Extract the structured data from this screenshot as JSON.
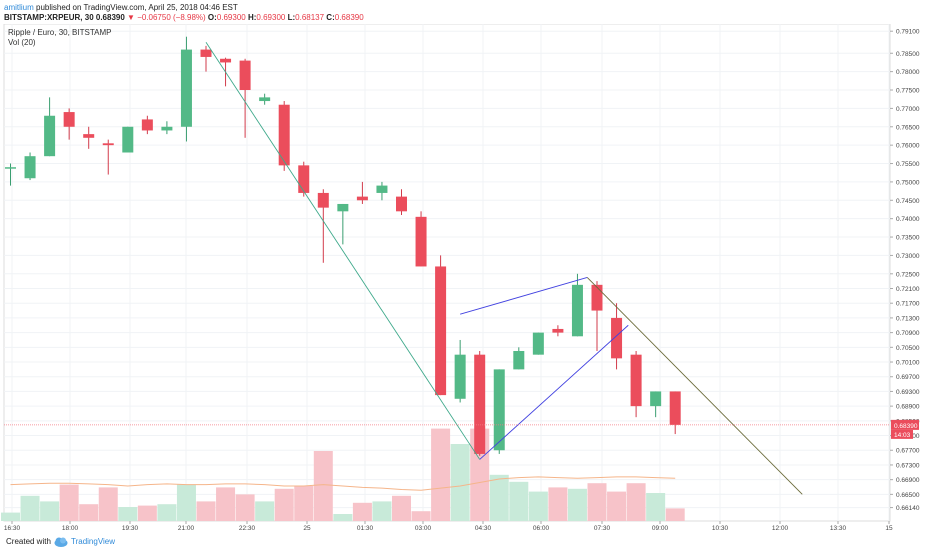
{
  "header": {
    "author": "amitlium",
    "published": "published on TradingView.com, April 25, 2018 04:46 EST",
    "symbol": "BITSTAMP:XRPEUR, 30",
    "last": "0.68390",
    "change_arrow": "▼",
    "change": "−0.06750 (−8.98%)",
    "o_label": "O:",
    "o_value": "0.69300",
    "h_label": "H:",
    "h_value": "0.69300",
    "l_label": "L:",
    "l_value": "0.68137",
    "c_label": "C:",
    "c_value": "0.68390"
  },
  "legend": {
    "series_title": "Ripple / Euro, 30, BITSTAMP",
    "volume_title": "Vol (20)"
  },
  "footer": {
    "created_with": "Created with",
    "brand": "TradingView"
  },
  "colors": {
    "up": "#53b987",
    "down": "#eb4d5c",
    "up_volume": "#c8ead9",
    "down_volume": "#f7c3c9",
    "vol_ma": "#f5b58a",
    "trend_green": "#3fa98b",
    "trend_blue": "#4242e0",
    "trend_olive": "#6b6b3a",
    "price_line": "#f47a86",
    "price_tag": "#eb4d5c"
  },
  "chart_data": {
    "type": "candlestick",
    "title": "Ripple / Euro, 30, BITSTAMP",
    "interval": "30",
    "y_axis": {
      "ticks": [
        "0.79500",
        "0.79100",
        "0.78500",
        "0.78000",
        "0.77500",
        "0.77000",
        "0.76500",
        "0.76000",
        "0.75500",
        "0.75000",
        "0.74500",
        "0.74000",
        "0.73500",
        "0.73000",
        "0.72500",
        "0.72100",
        "0.71700",
        "0.71300",
        "0.70900",
        "0.70500",
        "0.70100",
        "0.69700",
        "0.69300",
        "0.68900",
        "0.68500",
        "0.68100",
        "0.67700",
        "0.67300",
        "0.66900",
        "0.66500",
        "0.66140"
      ],
      "range": [
        0.6602,
        0.7984
      ],
      "position": "right"
    },
    "x_axis": {
      "ticks": [
        "16:30",
        "18:00",
        "19:30",
        "21:00",
        "22:30",
        "25",
        "01:30",
        "03:00",
        "04:30",
        "06:00",
        "07:30",
        "09:00",
        "10:30",
        "12:00",
        "13:30",
        "15"
      ]
    },
    "last_price": {
      "value": "0.68390",
      "countdown": "14:03"
    },
    "candles": [
      {
        "o": 0.754,
        "h": 0.755,
        "l": 0.749,
        "c": 0.754
      },
      {
        "o": 0.751,
        "h": 0.758,
        "l": 0.7505,
        "c": 0.757
      },
      {
        "o": 0.757,
        "h": 0.773,
        "l": 0.757,
        "c": 0.768
      },
      {
        "o": 0.769,
        "h": 0.77,
        "l": 0.7615,
        "c": 0.765
      },
      {
        "o": 0.763,
        "h": 0.765,
        "l": 0.759,
        "c": 0.762
      },
      {
        "o": 0.7605,
        "h": 0.7615,
        "l": 0.752,
        "c": 0.76
      },
      {
        "o": 0.758,
        "h": 0.765,
        "l": 0.758,
        "c": 0.765
      },
      {
        "o": 0.767,
        "h": 0.768,
        "l": 0.763,
        "c": 0.764
      },
      {
        "o": 0.764,
        "h": 0.7665,
        "l": 0.763,
        "c": 0.765
      },
      {
        "o": 0.765,
        "h": 0.7895,
        "l": 0.761,
        "c": 0.786
      },
      {
        "o": 0.786,
        "h": 0.787,
        "l": 0.78,
        "c": 0.784
      },
      {
        "o": 0.7835,
        "h": 0.7838,
        "l": 0.776,
        "c": 0.7825
      },
      {
        "o": 0.783,
        "h": 0.7835,
        "l": 0.762,
        "c": 0.775
      },
      {
        "o": 0.772,
        "h": 0.774,
        "l": 0.771,
        "c": 0.773
      },
      {
        "o": 0.771,
        "h": 0.772,
        "l": 0.753,
        "c": 0.7545
      },
      {
        "o": 0.7545,
        "h": 0.7555,
        "l": 0.746,
        "c": 0.747
      },
      {
        "o": 0.747,
        "h": 0.748,
        "l": 0.728,
        "c": 0.743
      },
      {
        "o": 0.742,
        "h": 0.744,
        "l": 0.733,
        "c": 0.744
      },
      {
        "o": 0.746,
        "h": 0.75,
        "l": 0.744,
        "c": 0.745
      },
      {
        "o": 0.747,
        "h": 0.75,
        "l": 0.745,
        "c": 0.749
      },
      {
        "o": 0.746,
        "h": 0.748,
        "l": 0.741,
        "c": 0.742
      },
      {
        "o": 0.7405,
        "h": 0.742,
        "l": 0.727,
        "c": 0.727
      },
      {
        "o": 0.727,
        "h": 0.73,
        "l": 0.692,
        "c": 0.692
      },
      {
        "o": 0.691,
        "h": 0.707,
        "l": 0.69,
        "c": 0.703
      },
      {
        "o": 0.703,
        "h": 0.704,
        "l": 0.6755,
        "c": 0.676
      },
      {
        "o": 0.677,
        "h": 0.699,
        "l": 0.676,
        "c": 0.699
      },
      {
        "o": 0.699,
        "h": 0.705,
        "l": 0.699,
        "c": 0.704
      },
      {
        "o": 0.703,
        "h": 0.709,
        "l": 0.703,
        "c": 0.709
      },
      {
        "o": 0.71,
        "h": 0.711,
        "l": 0.708,
        "c": 0.709
      },
      {
        "o": 0.708,
        "h": 0.725,
        "l": 0.708,
        "c": 0.722
      },
      {
        "o": 0.722,
        "h": 0.723,
        "l": 0.704,
        "c": 0.715
      },
      {
        "o": 0.713,
        "h": 0.717,
        "l": 0.699,
        "c": 0.702
      },
      {
        "o": 0.703,
        "h": 0.704,
        "l": 0.686,
        "c": 0.689
      },
      {
        "o": 0.689,
        "h": 0.693,
        "l": 0.686,
        "c": 0.693
      },
      {
        "o": 0.693,
        "h": 0.693,
        "l": 0.6814,
        "c": 0.6839
      }
    ],
    "volume": [
      12,
      36,
      28,
      52,
      24,
      48,
      20,
      22,
      24,
      52,
      28,
      48,
      38,
      28,
      46,
      50,
      100,
      10,
      26,
      28,
      36,
      14,
      132,
      110,
      132,
      66,
      56,
      42,
      48,
      46,
      54,
      42,
      54,
      40,
      18
    ],
    "volume_ma": [
      52,
      53,
      54,
      54,
      53,
      52,
      50,
      52,
      53,
      52,
      52,
      53,
      53,
      52,
      50,
      50,
      52,
      50,
      48,
      47,
      45,
      44,
      47,
      50,
      55,
      60,
      62,
      63,
      62,
      61,
      62,
      63,
      63,
      62,
      61
    ],
    "drawings": [
      {
        "kind": "trend_line",
        "color": "green",
        "from": {
          "bar": 10,
          "price": 0.788
        },
        "to": {
          "bar": 24,
          "price": 0.6745
        }
      },
      {
        "kind": "trend_line",
        "color": "blue",
        "from": {
          "bar": 23,
          "price": 0.714
        },
        "to": {
          "bar": 29.5,
          "price": 0.724
        }
      },
      {
        "kind": "trend_line",
        "color": "blue",
        "from": {
          "bar": 24,
          "price": 0.6745
        },
        "to": {
          "bar": 31.6,
          "price": 0.711
        }
      },
      {
        "kind": "trend_line",
        "color": "olive",
        "from": {
          "bar": 29.5,
          "price": 0.724
        },
        "to": {
          "bar": 40.5,
          "price": 0.665
        }
      }
    ]
  }
}
